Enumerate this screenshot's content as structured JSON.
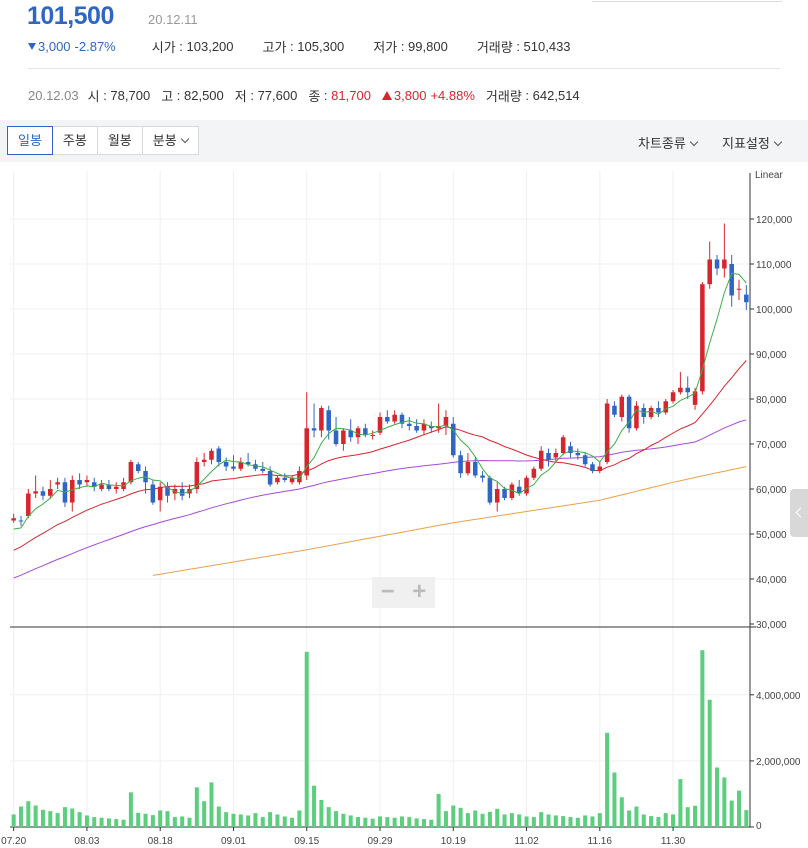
{
  "quote": {
    "price": "101,500",
    "date": "20.12.11",
    "change": "3,000",
    "change_pct": "-2.87%",
    "open_label": "시가",
    "open": "103,200",
    "high_label": "고가",
    "high": "105,300",
    "low_label": "저가",
    "low": "99,800",
    "volume_label": "거래량",
    "volume": "510,433"
  },
  "hover": {
    "date": "20.12.03",
    "open_label": "시",
    "open": "78,700",
    "high_label": "고",
    "high": "82,500",
    "low_label": "저",
    "low": "77,600",
    "close_label": "종",
    "close": "81,700",
    "change": "3,800",
    "change_pct": "+4.88%",
    "volume_label": "거래량",
    "volume": "642,514"
  },
  "toolbar": {
    "tabs": [
      {
        "label": "일봉"
      },
      {
        "label": "주봉"
      },
      {
        "label": "월봉"
      },
      {
        "label": "분봉"
      }
    ],
    "chart_type_label": "차트종류",
    "indicator_label": "지표설정"
  },
  "zoom": {
    "minus": "−",
    "plus": "+"
  },
  "colors": {
    "up": "#d6262d",
    "down": "#2f66c3",
    "ma5": "#3fae49",
    "ma20": "#d6262d",
    "ma60": "#a64ad8",
    "ma120": "#e8a24a",
    "volume": "#5ccf7f"
  },
  "chart_data": {
    "type": "candlestick",
    "scale_label": "Linear",
    "price_axis": {
      "ticks": [
        "120,000",
        "110,000",
        "100,000",
        "90,000",
        "80,000",
        "70,000",
        "60,000",
        "50,000",
        "40,000",
        "30,000"
      ],
      "range": [
        30000,
        123000
      ]
    },
    "volume_axis": {
      "ticks": [
        "4,000,000",
        "2,000,000",
        "0"
      ],
      "range": [
        0,
        5900000
      ]
    },
    "x_ticks": [
      {
        "label": "07.20",
        "index": 0
      },
      {
        "label": "08.03",
        "index": 10
      },
      {
        "label": "08.18",
        "index": 20
      },
      {
        "label": "09.01",
        "index": 30
      },
      {
        "label": "09.15",
        "index": 40
      },
      {
        "label": "09.29",
        "index": 50
      },
      {
        "label": "10.19",
        "index": 60
      },
      {
        "label": "11.02",
        "index": 70
      },
      {
        "label": "11.16",
        "index": 80
      },
      {
        "label": "11.30",
        "index": 90
      }
    ],
    "candles": [
      {
        "o": 53000,
        "h": 54500,
        "l": 52500,
        "c": 53500,
        "v": 380000
      },
      {
        "o": 53000,
        "h": 54000,
        "l": 51800,
        "c": 52800,
        "v": 620000
      },
      {
        "o": 54000,
        "h": 60000,
        "l": 53500,
        "c": 59000,
        "v": 780000
      },
      {
        "o": 59000,
        "h": 63000,
        "l": 58000,
        "c": 59500,
        "v": 650000
      },
      {
        "o": 59500,
        "h": 60500,
        "l": 57500,
        "c": 58500,
        "v": 520000
      },
      {
        "o": 58500,
        "h": 62000,
        "l": 58000,
        "c": 60000,
        "v": 480000
      },
      {
        "o": 61000,
        "h": 62500,
        "l": 60000,
        "c": 61500,
        "v": 420000
      },
      {
        "o": 61500,
        "h": 62500,
        "l": 56000,
        "c": 57000,
        "v": 600000
      },
      {
        "o": 57000,
        "h": 63000,
        "l": 55000,
        "c": 62000,
        "v": 560000
      },
      {
        "o": 62000,
        "h": 63500,
        "l": 60000,
        "c": 61000,
        "v": 450000
      },
      {
        "o": 61500,
        "h": 63000,
        "l": 60500,
        "c": 62000,
        "v": 350000
      },
      {
        "o": 61500,
        "h": 62500,
        "l": 59500,
        "c": 60500,
        "v": 300000
      },
      {
        "o": 60000,
        "h": 62000,
        "l": 59500,
        "c": 61000,
        "v": 280000
      },
      {
        "o": 61000,
        "h": 62000,
        "l": 59500,
        "c": 60000,
        "v": 260000
      },
      {
        "o": 60000,
        "h": 61500,
        "l": 59000,
        "c": 60500,
        "v": 240000
      },
      {
        "o": 60000,
        "h": 62500,
        "l": 59500,
        "c": 61500,
        "v": 220000
      },
      {
        "o": 61500,
        "h": 66500,
        "l": 61000,
        "c": 66000,
        "v": 1050000
      },
      {
        "o": 65500,
        "h": 66000,
        "l": 63500,
        "c": 64000,
        "v": 430000
      },
      {
        "o": 64000,
        "h": 65000,
        "l": 59000,
        "c": 61500,
        "v": 400000
      },
      {
        "o": 61000,
        "h": 62000,
        "l": 56500,
        "c": 57000,
        "v": 360000
      },
      {
        "o": 57500,
        "h": 61500,
        "l": 55000,
        "c": 60500,
        "v": 500000
      },
      {
        "o": 60500,
        "h": 61500,
        "l": 57000,
        "c": 58500,
        "v": 480000
      },
      {
        "o": 59000,
        "h": 61000,
        "l": 57500,
        "c": 60000,
        "v": 300000
      },
      {
        "o": 60000,
        "h": 61500,
        "l": 57500,
        "c": 58500,
        "v": 320000
      },
      {
        "o": 59000,
        "h": 61000,
        "l": 58000,
        "c": 60000,
        "v": 280000
      },
      {
        "o": 60000,
        "h": 67000,
        "l": 59000,
        "c": 66000,
        "v": 1200000
      },
      {
        "o": 66000,
        "h": 68000,
        "l": 65000,
        "c": 66500,
        "v": 780000
      },
      {
        "o": 66500,
        "h": 69000,
        "l": 65500,
        "c": 68500,
        "v": 1350000
      },
      {
        "o": 69000,
        "h": 69500,
        "l": 65000,
        "c": 66000,
        "v": 620000
      },
      {
        "o": 66000,
        "h": 67000,
        "l": 64000,
        "c": 65000,
        "v": 450000
      },
      {
        "o": 65000,
        "h": 67500,
        "l": 64000,
        "c": 64500,
        "v": 400000
      },
      {
        "o": 64500,
        "h": 67000,
        "l": 64000,
        "c": 66000,
        "v": 380000
      },
      {
        "o": 66000,
        "h": 68000,
        "l": 65000,
        "c": 65500,
        "v": 350000
      },
      {
        "o": 65500,
        "h": 66500,
        "l": 64000,
        "c": 64500,
        "v": 420000
      },
      {
        "o": 64500,
        "h": 66000,
        "l": 63500,
        "c": 64000,
        "v": 300000
      },
      {
        "o": 64000,
        "h": 65000,
        "l": 60500,
        "c": 61000,
        "v": 450000
      },
      {
        "o": 61500,
        "h": 63000,
        "l": 61000,
        "c": 62500,
        "v": 380000
      },
      {
        "o": 62500,
        "h": 63500,
        "l": 61500,
        "c": 62000,
        "v": 320000
      },
      {
        "o": 61500,
        "h": 63000,
        "l": 61000,
        "c": 62500,
        "v": 280000
      },
      {
        "o": 61500,
        "h": 65000,
        "l": 61000,
        "c": 64000,
        "v": 500000
      },
      {
        "o": 63000,
        "h": 81500,
        "l": 62000,
        "c": 73500,
        "v": 5300000
      },
      {
        "o": 73500,
        "h": 79000,
        "l": 71500,
        "c": 73000,
        "v": 1250000
      },
      {
        "o": 73000,
        "h": 78500,
        "l": 71500,
        "c": 78000,
        "v": 820000
      },
      {
        "o": 77500,
        "h": 78500,
        "l": 71000,
        "c": 73000,
        "v": 600000
      },
      {
        "o": 73000,
        "h": 76000,
        "l": 69500,
        "c": 70000,
        "v": 480000
      },
      {
        "o": 70000,
        "h": 73500,
        "l": 68500,
        "c": 73000,
        "v": 400000
      },
      {
        "o": 73000,
        "h": 75500,
        "l": 70500,
        "c": 71500,
        "v": 350000
      },
      {
        "o": 71500,
        "h": 74000,
        "l": 70000,
        "c": 73500,
        "v": 300000
      },
      {
        "o": 73500,
        "h": 74500,
        "l": 71500,
        "c": 72000,
        "v": 280000
      },
      {
        "o": 72000,
        "h": 73000,
        "l": 71000,
        "c": 72000,
        "v": 250000
      },
      {
        "o": 72500,
        "h": 77000,
        "l": 72000,
        "c": 76000,
        "v": 320000
      },
      {
        "o": 76000,
        "h": 77500,
        "l": 74500,
        "c": 75000,
        "v": 300000
      },
      {
        "o": 75000,
        "h": 77500,
        "l": 74500,
        "c": 76500,
        "v": 280000
      },
      {
        "o": 76500,
        "h": 77000,
        "l": 73500,
        "c": 74500,
        "v": 320000
      },
      {
        "o": 74500,
        "h": 76000,
        "l": 73000,
        "c": 74000,
        "v": 300000
      },
      {
        "o": 74000,
        "h": 75500,
        "l": 72500,
        "c": 73000,
        "v": 260000
      },
      {
        "o": 73000,
        "h": 75500,
        "l": 72000,
        "c": 74500,
        "v": 240000
      },
      {
        "o": 74000,
        "h": 75000,
        "l": 72500,
        "c": 73500,
        "v": 220000
      },
      {
        "o": 73500,
        "h": 79000,
        "l": 72500,
        "c": 74000,
        "v": 1000000
      },
      {
        "o": 74000,
        "h": 77500,
        "l": 72000,
        "c": 76000,
        "v": 480000
      },
      {
        "o": 74500,
        "h": 76000,
        "l": 67000,
        "c": 67500,
        "v": 650000
      },
      {
        "o": 67500,
        "h": 68500,
        "l": 62500,
        "c": 63500,
        "v": 580000
      },
      {
        "o": 63500,
        "h": 68000,
        "l": 63000,
        "c": 66000,
        "v": 420000
      },
      {
        "o": 66000,
        "h": 67000,
        "l": 62500,
        "c": 63000,
        "v": 500000
      },
      {
        "o": 63000,
        "h": 64000,
        "l": 61500,
        "c": 62500,
        "v": 400000
      },
      {
        "o": 62500,
        "h": 63000,
        "l": 56500,
        "c": 57000,
        "v": 460000
      },
      {
        "o": 57000,
        "h": 61500,
        "l": 55000,
        "c": 60000,
        "v": 550000
      },
      {
        "o": 60000,
        "h": 60500,
        "l": 57500,
        "c": 58000,
        "v": 380000
      },
      {
        "o": 58000,
        "h": 61500,
        "l": 57500,
        "c": 61000,
        "v": 420000
      },
      {
        "o": 60500,
        "h": 62000,
        "l": 58500,
        "c": 59000,
        "v": 380000
      },
      {
        "o": 59000,
        "h": 63000,
        "l": 58500,
        "c": 62500,
        "v": 320000
      },
      {
        "o": 62500,
        "h": 65000,
        "l": 62000,
        "c": 64500,
        "v": 300000
      },
      {
        "o": 64500,
        "h": 69500,
        "l": 64000,
        "c": 68500,
        "v": 450000
      },
      {
        "o": 68000,
        "h": 69000,
        "l": 65000,
        "c": 66500,
        "v": 380000
      },
      {
        "o": 67000,
        "h": 69000,
        "l": 66000,
        "c": 68000,
        "v": 350000
      },
      {
        "o": 68000,
        "h": 72000,
        "l": 67500,
        "c": 71500,
        "v": 330000
      },
      {
        "o": 69500,
        "h": 70500,
        "l": 67000,
        "c": 68000,
        "v": 300000
      },
      {
        "o": 68000,
        "h": 69000,
        "l": 66500,
        "c": 67500,
        "v": 280000
      },
      {
        "o": 67500,
        "h": 68000,
        "l": 65000,
        "c": 65500,
        "v": 350000
      },
      {
        "o": 65500,
        "h": 66000,
        "l": 63500,
        "c": 64000,
        "v": 320000
      },
      {
        "o": 64000,
        "h": 66000,
        "l": 63500,
        "c": 65000,
        "v": 420000
      },
      {
        "o": 66000,
        "h": 80000,
        "l": 65500,
        "c": 79000,
        "v": 2850000
      },
      {
        "o": 78500,
        "h": 79500,
        "l": 76000,
        "c": 76500,
        "v": 1650000
      },
      {
        "o": 76000,
        "h": 81000,
        "l": 75000,
        "c": 80500,
        "v": 900000
      },
      {
        "o": 80500,
        "h": 81000,
        "l": 72500,
        "c": 73500,
        "v": 500000
      },
      {
        "o": 73500,
        "h": 79500,
        "l": 73000,
        "c": 78500,
        "v": 620000
      },
      {
        "o": 78000,
        "h": 79000,
        "l": 74500,
        "c": 76000,
        "v": 380000
      },
      {
        "o": 76000,
        "h": 78500,
        "l": 75500,
        "c": 78000,
        "v": 330000
      },
      {
        "o": 78000,
        "h": 79500,
        "l": 76000,
        "c": 77000,
        "v": 300000
      },
      {
        "o": 77000,
        "h": 80000,
        "l": 76500,
        "c": 79500,
        "v": 420000
      },
      {
        "o": 79500,
        "h": 82000,
        "l": 79000,
        "c": 81500,
        "v": 380000
      },
      {
        "o": 81500,
        "h": 86000,
        "l": 81000,
        "c": 82500,
        "v": 1450000
      },
      {
        "o": 82500,
        "h": 85000,
        "l": 80000,
        "c": 81500,
        "v": 600000
      },
      {
        "o": 78700,
        "h": 82500,
        "l": 77600,
        "c": 81700,
        "v": 642514
      },
      {
        "o": 81700,
        "h": 106000,
        "l": 81000,
        "c": 105500,
        "v": 5350000
      },
      {
        "o": 105500,
        "h": 115000,
        "l": 104500,
        "c": 111000,
        "v": 3850000
      },
      {
        "o": 111000,
        "h": 112000,
        "l": 107500,
        "c": 109000,
        "v": 1800000
      },
      {
        "o": 109000,
        "h": 119000,
        "l": 107000,
        "c": 111000,
        "v": 1500000
      },
      {
        "o": 110000,
        "h": 112000,
        "l": 100500,
        "c": 103000,
        "v": 800000
      },
      {
        "o": 104500,
        "h": 106500,
        "l": 102000,
        "c": 104500,
        "v": 1100000
      },
      {
        "o": 103200,
        "h": 105300,
        "l": 99800,
        "c": 101500,
        "v": 510433
      }
    ],
    "ma120": {
      "start_index": 19,
      "values_at": [
        [
          19,
          40800
        ],
        [
          40,
          46500
        ],
        [
          60,
          52500
        ],
        [
          80,
          57500
        ],
        [
          90,
          61500
        ],
        [
          100,
          65000
        ]
      ]
    }
  }
}
